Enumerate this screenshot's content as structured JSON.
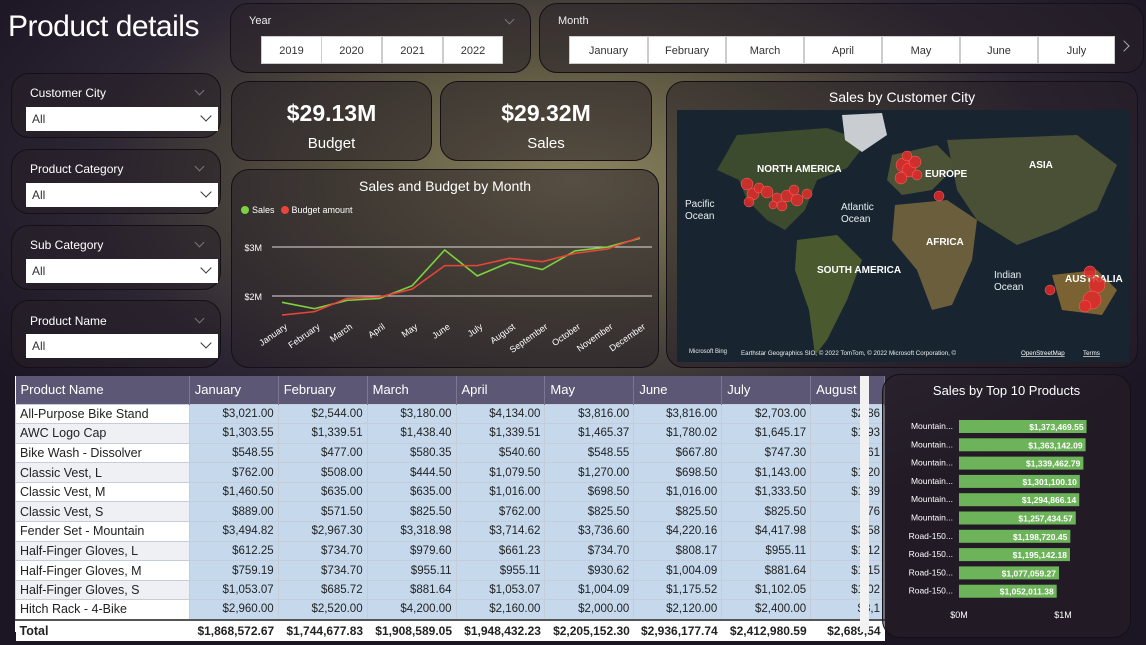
{
  "title": "Product details",
  "year_slicer": {
    "label": "Year",
    "options": [
      "2019",
      "2020",
      "2021",
      "2022"
    ]
  },
  "month_slicer": {
    "label": "Month",
    "options": [
      "January",
      "February",
      "March",
      "April",
      "May",
      "June",
      "July"
    ]
  },
  "filters": [
    {
      "label": "Customer City",
      "value": "All"
    },
    {
      "label": "Product Category",
      "value": "All"
    },
    {
      "label": "Sub Category",
      "value": "All"
    },
    {
      "label": "Product Name",
      "value": "All"
    }
  ],
  "kpis": {
    "budget_value": "$29.13M",
    "budget_label": "Budget",
    "sales_value": "$29.32M",
    "sales_label": "Sales"
  },
  "line_chart": {
    "title": "Sales and Budget by Month",
    "legend": [
      "Sales",
      "Budget amount"
    ],
    "colors": [
      "#7cd13f",
      "#e8443a"
    ],
    "y_ticks": [
      "$3M",
      "$2M"
    ]
  },
  "map": {
    "title": "Sales by Customer City",
    "labels": {
      "na": "NORTH AMERICA",
      "europe": "EUROPE",
      "asia": "ASIA",
      "africa": "AFRICA",
      "sa": "SOUTH AMERICA",
      "pacific": "Pacific\nOcean",
      "atlantic": "Atlantic\nOcean",
      "indian": "Indian\nOcean",
      "aus": "AUSTRALIA"
    },
    "brand": "Microsoft Bing",
    "attribution": "Earthstar Geographics SIO, © 2022 TomTom, © 2022 Microsoft Corporation, ©",
    "osm": "OpenStreetMap",
    "terms": "Terms"
  },
  "table": {
    "columns": [
      "Product Name",
      "January",
      "February",
      "March",
      "April",
      "May",
      "June",
      "July",
      "August"
    ],
    "rows": [
      [
        "All-Purpose Bike Stand",
        "$3,021.00",
        "$2,544.00",
        "$3,180.00",
        "$4,134.00",
        "$3,816.00",
        "$3,816.00",
        "$2,703.00",
        "$2,86"
      ],
      [
        "AWC Logo Cap",
        "$1,303.55",
        "$1,339.51",
        "$1,438.40",
        "$1,339.51",
        "$1,465.37",
        "$1,780.02",
        "$1,645.17",
        "$1,93"
      ],
      [
        "Bike Wash - Dissolver",
        "$548.55",
        "$477.00",
        "$580.35",
        "$540.60",
        "$548.55",
        "$667.80",
        "$747.30",
        "$61"
      ],
      [
        "Classic Vest, L",
        "$762.00",
        "$508.00",
        "$444.50",
        "$1,079.50",
        "$1,270.00",
        "$698.50",
        "$1,143.00",
        "$1,20"
      ],
      [
        "Classic Vest, M",
        "$1,460.50",
        "$635.00",
        "$635.00",
        "$1,016.00",
        "$698.50",
        "$1,016.00",
        "$1,333.50",
        "$1,39"
      ],
      [
        "Classic Vest, S",
        "$889.00",
        "$571.50",
        "$825.50",
        "$762.00",
        "$825.50",
        "$825.50",
        "$825.50",
        "$76"
      ],
      [
        "Fender Set - Mountain",
        "$3,494.82",
        "$2,967.30",
        "$3,318.98",
        "$3,714.62",
        "$3,736.60",
        "$4,220.16",
        "$4,417.98",
        "$3,58"
      ],
      [
        "Half-Finger Gloves, L",
        "$612.25",
        "$734.70",
        "$979.60",
        "$661.23",
        "$734.70",
        "$808.17",
        "$955.11",
        "$1,12"
      ],
      [
        "Half-Finger Gloves, M",
        "$759.19",
        "$734.70",
        "$955.11",
        "$955.11",
        "$930.62",
        "$1,004.09",
        "$881.64",
        "$1,15"
      ],
      [
        "Half-Finger Gloves, S",
        "$1,053.07",
        "$685.72",
        "$881.64",
        "$1,053.07",
        "$1,004.09",
        "$1,175.52",
        "$1,102.05",
        "$1,02"
      ],
      [
        "Hitch Rack - 4-Bike",
        "$2,960.00",
        "$2,520.00",
        "$4,200.00",
        "$2,160.00",
        "$2,000.00",
        "$2,120.00",
        "$2,400.00",
        "$3,1"
      ]
    ],
    "total": [
      "Total",
      "$1,868,572.67",
      "$1,744,677.83",
      "$1,908,589.05",
      "$1,948,432.23",
      "$2,205,152.30",
      "$2,936,177.74",
      "$2,412,980.59",
      "$2,689,54"
    ]
  },
  "bar_chart": {
    "title": "Sales by Top 10 Products",
    "x_ticks": [
      "$0M",
      "$1M"
    ]
  },
  "chart_data": [
    {
      "type": "line",
      "title": "Sales and Budget by Month",
      "x": [
        "January",
        "February",
        "March",
        "April",
        "May",
        "June",
        "July",
        "August",
        "September",
        "October",
        "November",
        "December"
      ],
      "ylim": [
        1.55,
        3.45
      ],
      "y_ticks": [
        2,
        3
      ],
      "series": [
        {
          "name": "Sales",
          "values": [
            1.87,
            1.74,
            1.91,
            1.95,
            2.21,
            2.94,
            2.41,
            2.69,
            2.54,
            2.92,
            3.0,
            3.18
          ]
        },
        {
          "name": "Budget amount",
          "values": [
            1.61,
            1.68,
            1.95,
            1.98,
            2.14,
            2.62,
            2.62,
            2.77,
            2.7,
            2.87,
            2.96,
            3.2
          ]
        }
      ]
    },
    {
      "type": "bar",
      "title": "Sales by Top 10 Products",
      "orientation": "horizontal",
      "xlim": [
        0,
        1.55
      ],
      "categories": [
        "Mountain...",
        "Mountain...",
        "Mountain...",
        "Mountain...",
        "Mountain...",
        "Mountain...",
        "Road-150...",
        "Road-150...",
        "Road-150...",
        "Road-150..."
      ],
      "values": [
        1373469.55,
        1363142.09,
        1339462.79,
        1301100.1,
        1294866.14,
        1257434.57,
        1198720.45,
        1195142.18,
        1077059.27,
        1052011.38
      ],
      "labels": [
        "$1,373,469.55",
        "$1,363,142.09",
        "$1,339,462.79",
        "$1,301,100.10",
        "$1,294,866.14",
        "$1,257,434.57",
        "$1,198,720.45",
        "$1,195,142.18",
        "$1,077,059.27",
        "$1,052,011.38"
      ]
    }
  ]
}
